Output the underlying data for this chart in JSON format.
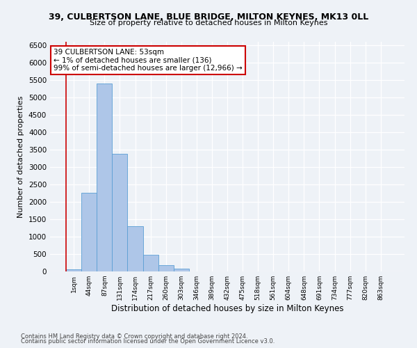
{
  "title1": "39, CULBERTSON LANE, BLUE BRIDGE, MILTON KEYNES, MK13 0LL",
  "title2": "Size of property relative to detached houses in Milton Keynes",
  "xlabel": "Distribution of detached houses by size in Milton Keynes",
  "ylabel": "Number of detached properties",
  "categories": [
    "1sqm",
    "44sqm",
    "87sqm",
    "131sqm",
    "174sqm",
    "217sqm",
    "260sqm",
    "303sqm",
    "346sqm",
    "389sqm",
    "432sqm",
    "475sqm",
    "518sqm",
    "561sqm",
    "604sqm",
    "648sqm",
    "691sqm",
    "734sqm",
    "777sqm",
    "820sqm",
    "863sqm"
  ],
  "values": [
    70,
    2270,
    5400,
    3380,
    1300,
    490,
    190,
    80,
    0,
    0,
    0,
    0,
    0,
    0,
    0,
    0,
    0,
    0,
    0,
    0,
    0
  ],
  "bar_color": "#aec6e8",
  "bar_edge_color": "#5a9fd4",
  "vline_color": "#cc0000",
  "annotation_text": "39 CULBERTSON LANE: 53sqm\n← 1% of detached houses are smaller (136)\n99% of semi-detached houses are larger (12,966) →",
  "annotation_box_color": "#ffffff",
  "annotation_box_edge_color": "#cc0000",
  "ylim": [
    0,
    6600
  ],
  "yticks": [
    0,
    500,
    1000,
    1500,
    2000,
    2500,
    3000,
    3500,
    4000,
    4500,
    5000,
    5500,
    6000,
    6500
  ],
  "footer1": "Contains HM Land Registry data © Crown copyright and database right 2024.",
  "footer2": "Contains public sector information licensed under the Open Government Licence v3.0.",
  "bg_color": "#eef2f7",
  "plot_bg_color": "#eef2f7",
  "grid_color": "#ffffff"
}
